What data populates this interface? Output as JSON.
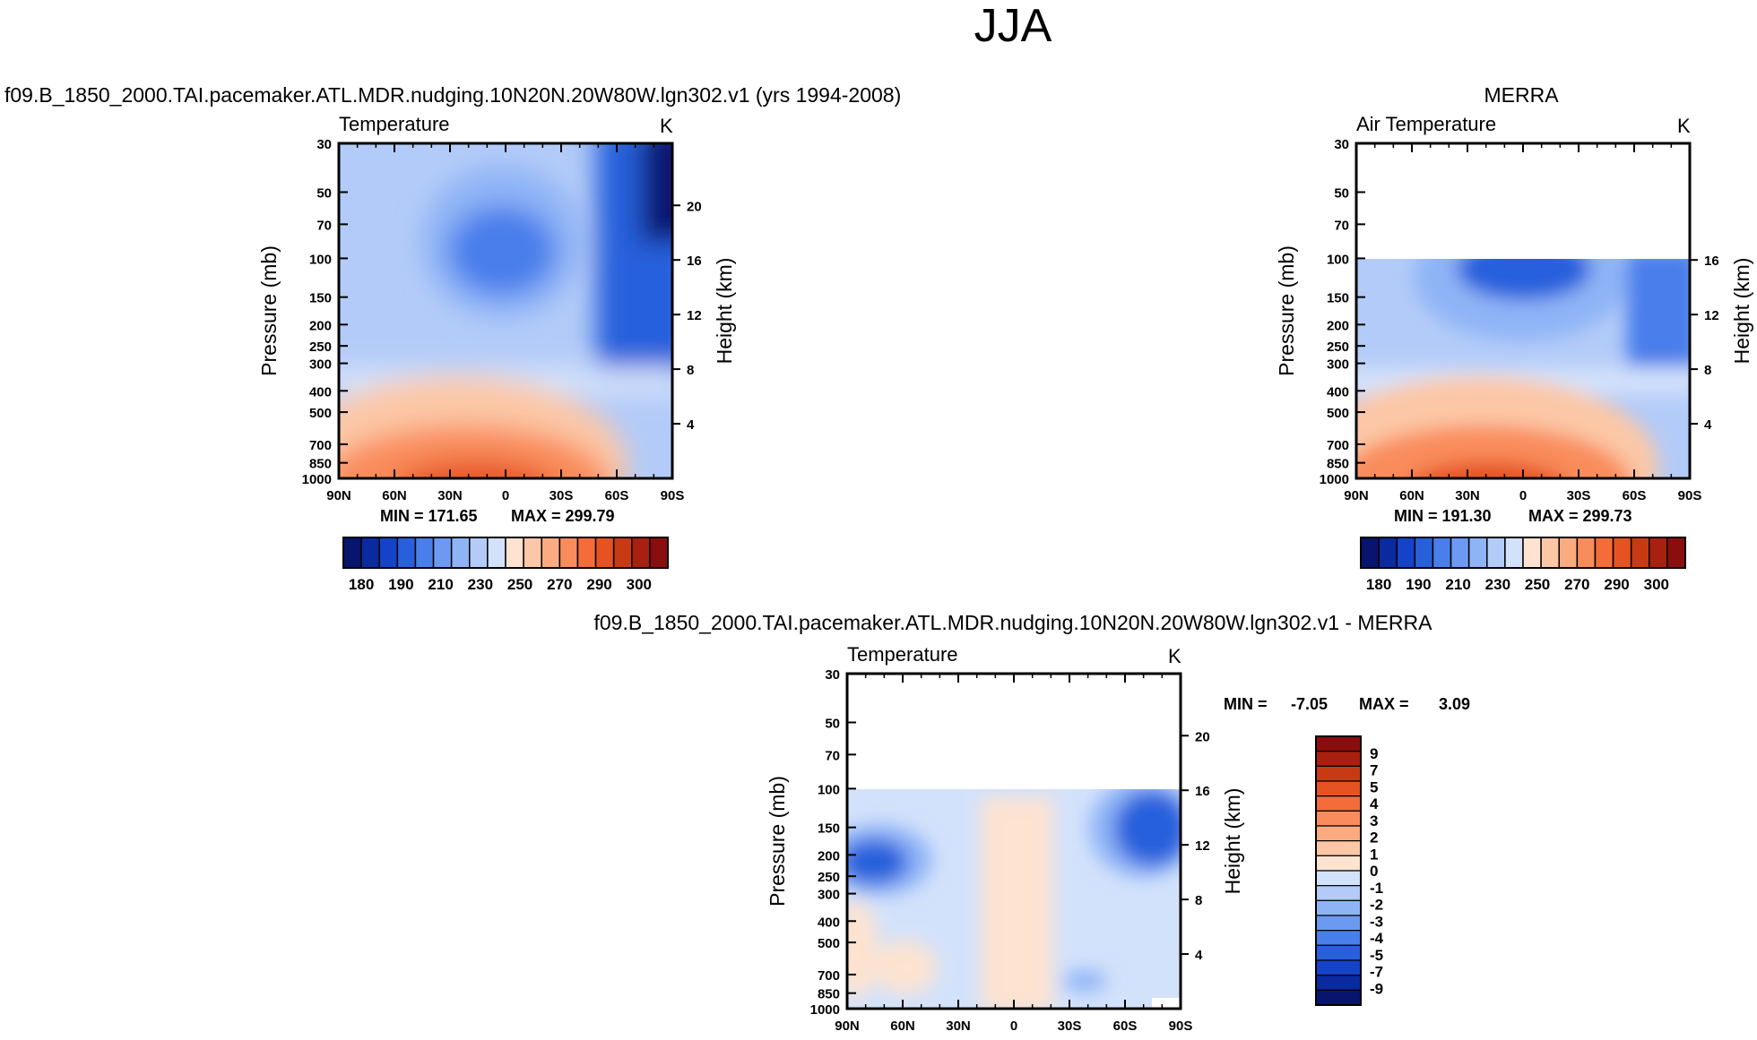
{
  "figure": {
    "title": "JJA"
  },
  "colors": {
    "bands": [
      "#08156e",
      "#0a2aa0",
      "#1442c8",
      "#2860dc",
      "#4a7eeb",
      "#6c9af2",
      "#8fb4f6",
      "#b3cbf8",
      "#d3e2fb",
      "#fde3d0",
      "#fcc7a6",
      "#fbab80",
      "#f98c5c",
      "#f36c3a",
      "#e65222",
      "#c83a14",
      "#a82010",
      "#8a0e0e"
    ],
    "diff_bands": [
      "#08156e",
      "#0a2aa0",
      "#1442c8",
      "#2860dc",
      "#4a7eeb",
      "#6c9af2",
      "#8fb4f6",
      "#b3cbf8",
      "#d3e2fb",
      "#fde3d0",
      "#fcc7a6",
      "#fbab80",
      "#f98c5c",
      "#f36c3a",
      "#e65222",
      "#c83a14",
      "#a82010",
      "#8a0e0e"
    ]
  },
  "chart_data": [
    {
      "id": "model",
      "type": "heatmap",
      "title": "f09.B_1850_2000.TAI.pacemaker.ATL.MDR.nudging.10N20N.20W80W.lgn302.v1 (yrs 1994-2008)",
      "variable": "Temperature",
      "units": "K",
      "xlabel": "",
      "ylabel": "Pressure (mb)",
      "ylabel_right": "Height (km)",
      "x_ticks": [
        "90N",
        "60N",
        "30N",
        "0",
        "30S",
        "60S",
        "90S"
      ],
      "y_ticks": [
        "30",
        "50",
        "70",
        "100",
        "150",
        "200",
        "250",
        "300",
        "400",
        "500",
        "700",
        "850",
        "1000"
      ],
      "y_right_ticks": [
        "20",
        "16",
        "12",
        "8",
        "4"
      ],
      "min_label": "MIN = 171.65",
      "max_label": "MAX = 299.79",
      "min": 171.65,
      "max": 299.79,
      "data_top_mb": 30,
      "colorbar_levels": [
        "180",
        "190",
        "210",
        "230",
        "250",
        "270",
        "290",
        "300"
      ]
    },
    {
      "id": "merra",
      "type": "heatmap",
      "title": "MERRA",
      "variable": "Air Temperature",
      "units": "K",
      "ylabel": "Pressure (mb)",
      "ylabel_right": "Height (km)",
      "x_ticks": [
        "90N",
        "60N",
        "30N",
        "0",
        "30S",
        "60S",
        "90S"
      ],
      "y_ticks": [
        "30",
        "50",
        "70",
        "100",
        "150",
        "200",
        "250",
        "300",
        "400",
        "500",
        "700",
        "850",
        "1000"
      ],
      "y_right_ticks": [
        "16",
        "12",
        "8",
        "4"
      ],
      "min_label": "MIN = 191.30",
      "max_label": "MAX = 299.73",
      "min": 191.3,
      "max": 299.73,
      "data_top_mb": 100,
      "colorbar_levels": [
        "180",
        "190",
        "210",
        "230",
        "250",
        "270",
        "290",
        "300"
      ]
    },
    {
      "id": "diff",
      "type": "heatmap",
      "title": "f09.B_1850_2000.TAI.pacemaker.ATL.MDR.nudging.10N20N.20W80W.lgn302.v1 - MERRA",
      "variable": "Temperature",
      "units": "K",
      "ylabel": "Pressure (mb)",
      "ylabel_right": "Height (km)",
      "x_ticks": [
        "90N",
        "60N",
        "30N",
        "0",
        "30S",
        "60S",
        "90S"
      ],
      "y_ticks": [
        "30",
        "50",
        "70",
        "100",
        "150",
        "200",
        "250",
        "300",
        "400",
        "500",
        "700",
        "850",
        "1000"
      ],
      "y_right_ticks": [
        "20",
        "16",
        "12",
        "8",
        "4"
      ],
      "min_label": "MIN =",
      "min_value": "-7.05",
      "max_label": "MAX =",
      "max_value": "3.09",
      "min": -7.05,
      "max": 3.09,
      "data_top_mb": 100,
      "colorbar_levels": [
        "9",
        "7",
        "5",
        "4",
        "3",
        "2",
        "1",
        "0",
        "-1",
        "-2",
        "-3",
        "-4",
        "-5",
        "-7",
        "-9"
      ]
    }
  ]
}
